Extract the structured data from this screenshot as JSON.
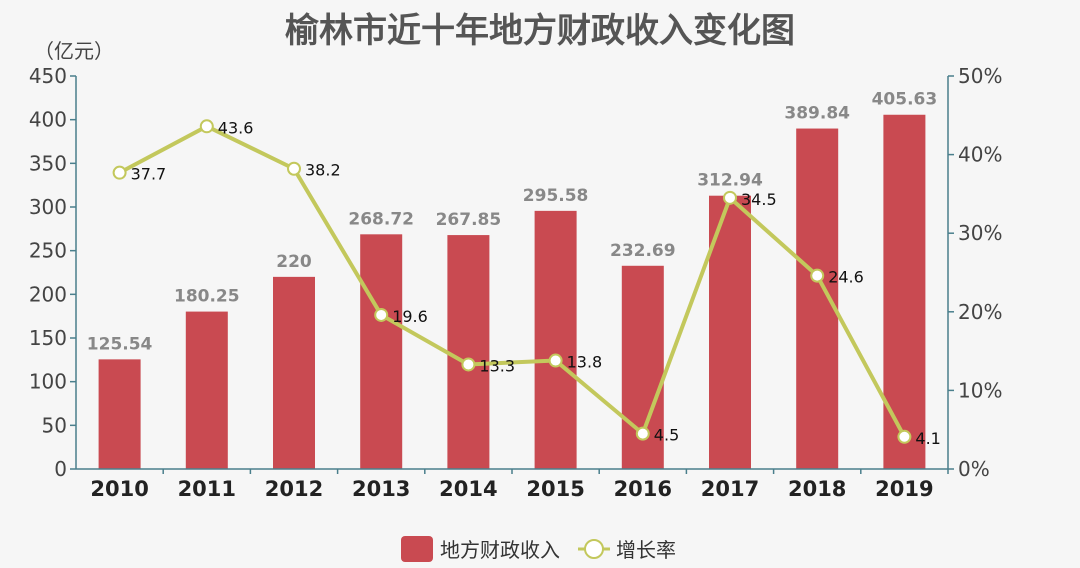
{
  "colors": {
    "bar": "#c94a51",
    "line": "#c3c85c",
    "point_fill": "#ffffff",
    "axis": "#4a7f8c"
  },
  "chart_data": {
    "type": "bar",
    "title": "榆林市近十年地方财政收入变化图",
    "ylabel": "（亿元）",
    "categories": [
      "2010",
      "2011",
      "2012",
      "2013",
      "2014",
      "2015",
      "2016",
      "2017",
      "2018",
      "2019"
    ],
    "ylim": [
      0,
      450
    ],
    "y_ticks": [
      "0",
      "50",
      "100",
      "150",
      "200",
      "250",
      "300",
      "350",
      "400",
      "450"
    ],
    "y2lim": [
      0,
      50
    ],
    "y2_ticks": [
      "0%",
      "10%",
      "20%",
      "30%",
      "40%",
      "50%"
    ],
    "legend_position": "bottom",
    "series": [
      {
        "name": "地方财政收入",
        "kind": "bar",
        "values": [
          125.54,
          180.25,
          220,
          268.72,
          267.85,
          295.58,
          232.69,
          312.94,
          389.84,
          405.63
        ],
        "labels": [
          "125.54",
          "180.25",
          "220",
          "268.72",
          "267.85",
          "295.58",
          "232.69",
          "312.94",
          "389.84",
          "405.63"
        ]
      },
      {
        "name": "增长率",
        "kind": "line",
        "axis": "right",
        "values": [
          37.7,
          43.6,
          38.2,
          19.6,
          13.3,
          13.8,
          4.5,
          34.5,
          24.6,
          4.1
        ],
        "labels": [
          "37.7",
          "43.6",
          "38.2",
          "19.6",
          "13.3",
          "13.8",
          "4.5",
          "34.5",
          "24.6",
          "4.1"
        ]
      }
    ]
  }
}
